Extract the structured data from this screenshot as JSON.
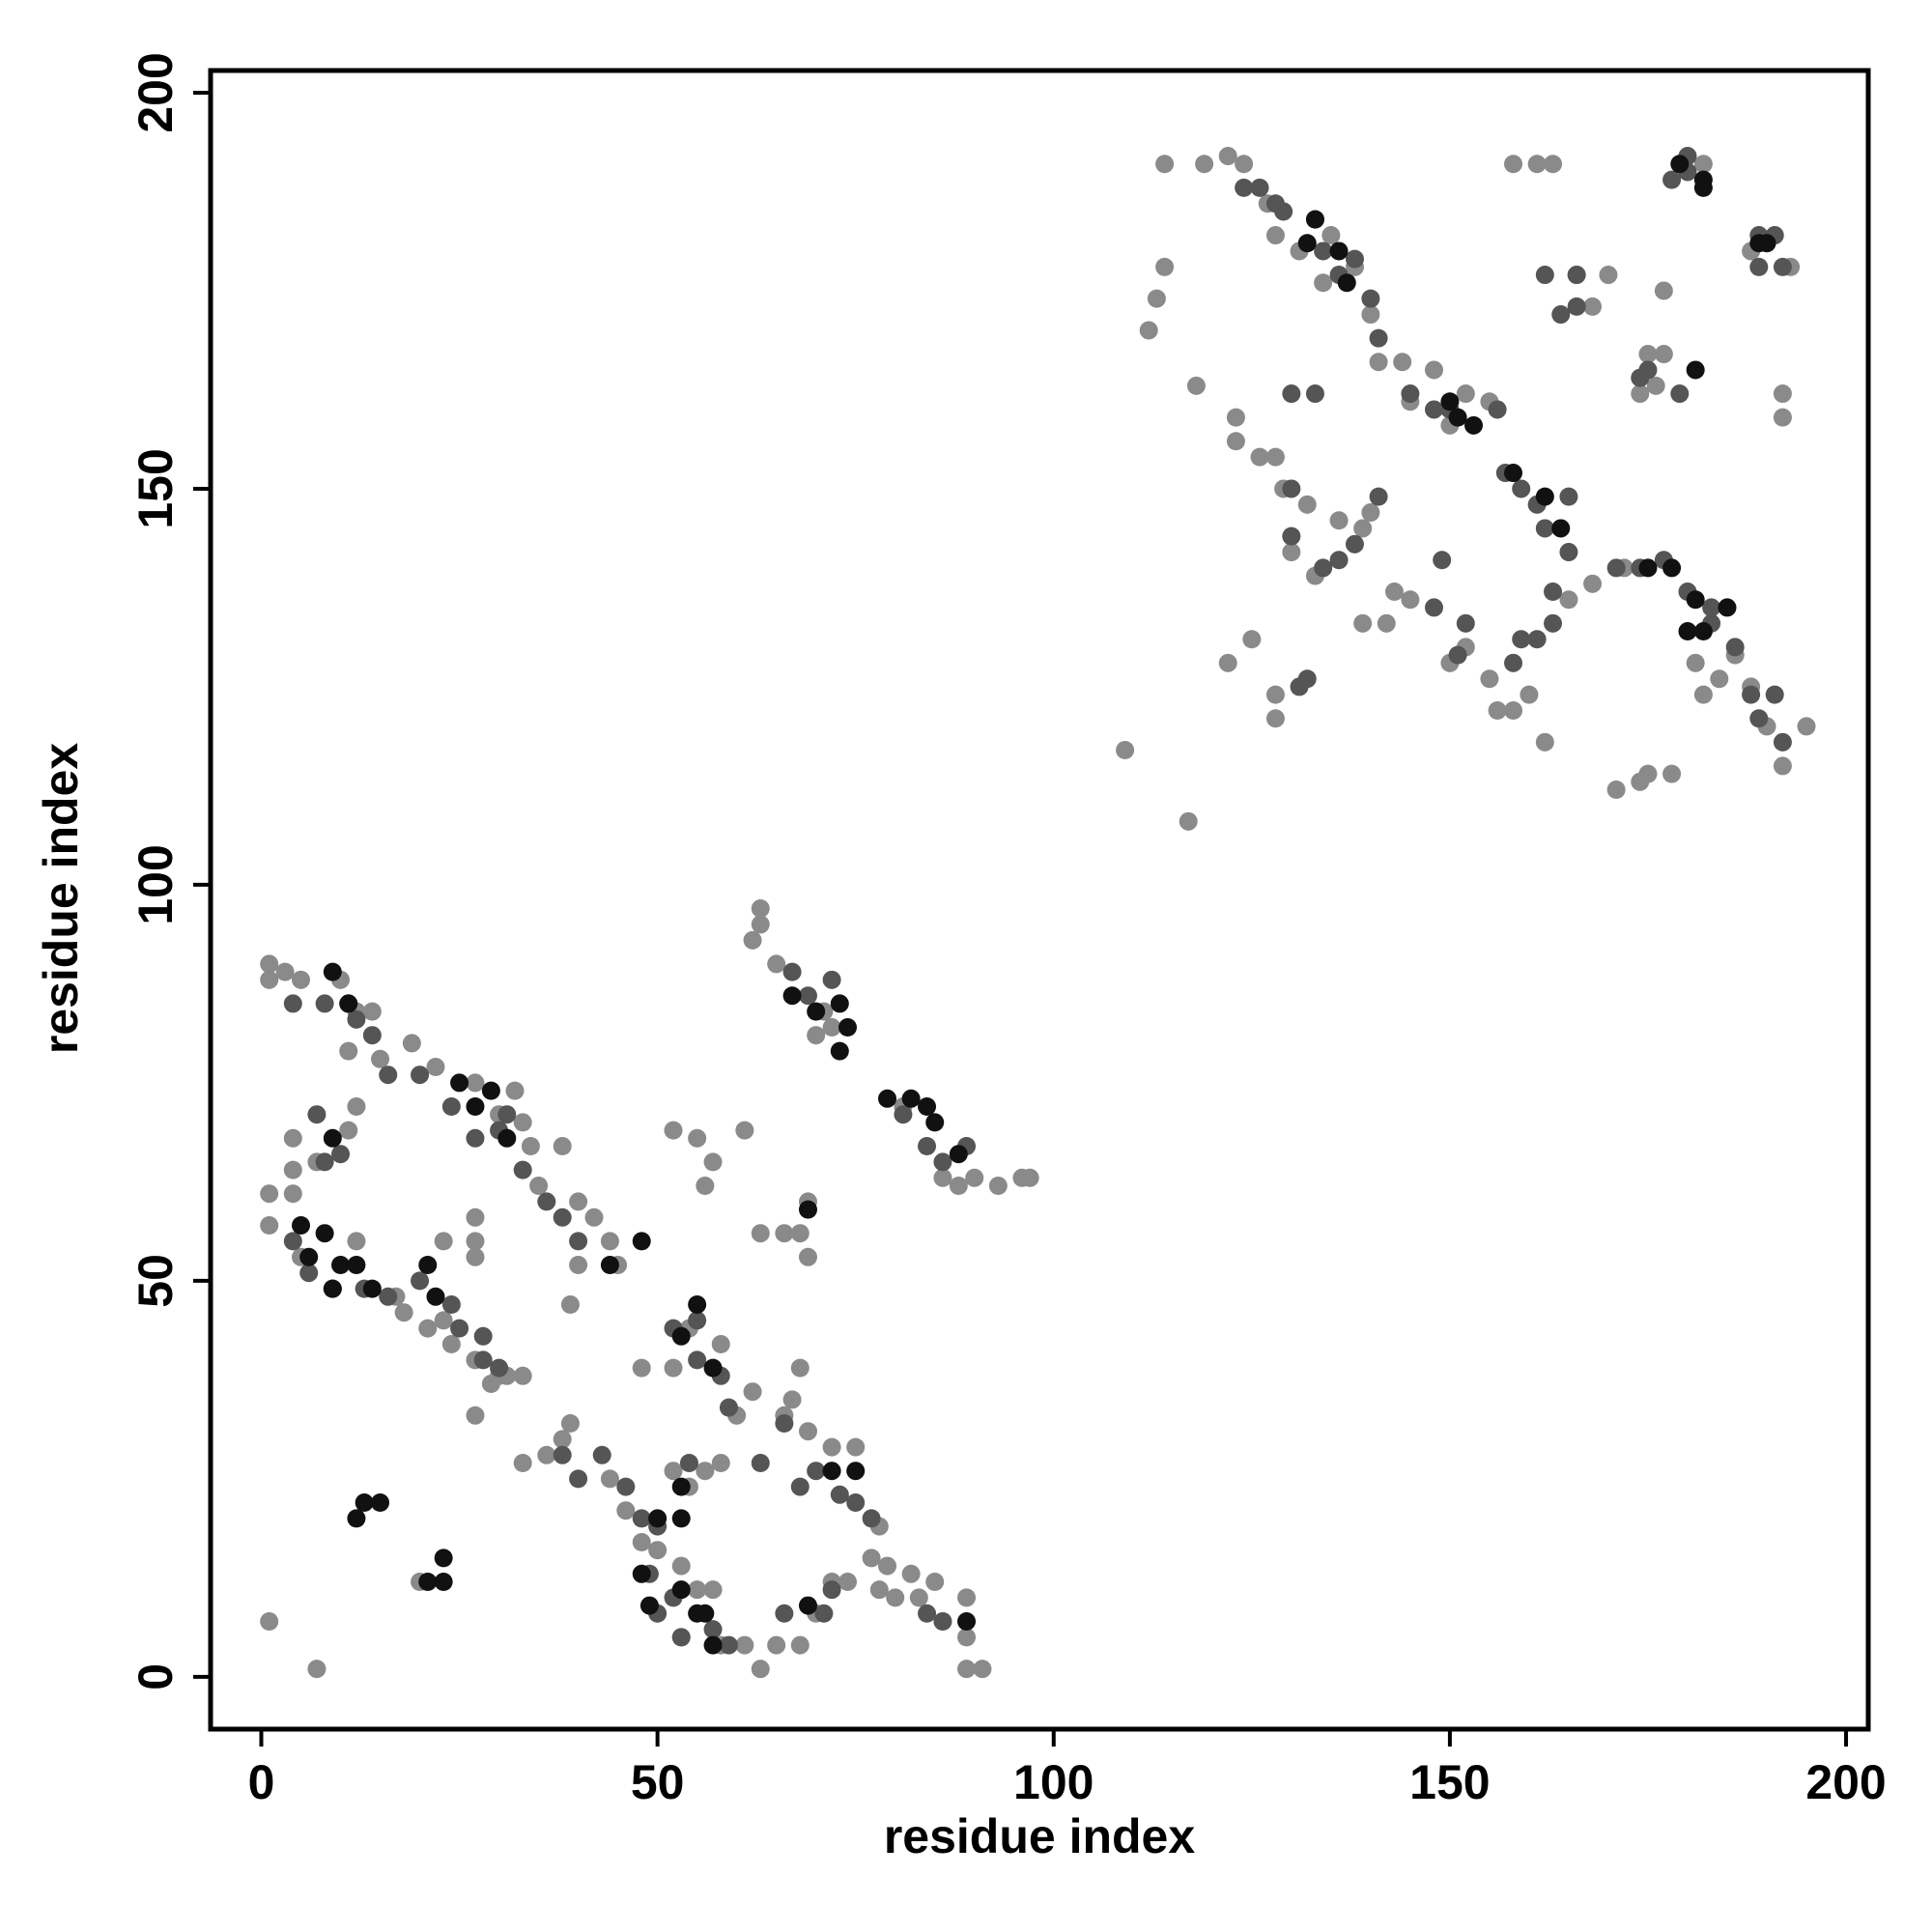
{
  "chart_data": {
    "type": "scatter",
    "x_label": "residue index",
    "y_label": "residue index",
    "xlim": [
      -6.4,
      202.8
    ],
    "ylim": [
      -6.6,
      202.8
    ],
    "xticks": [
      0,
      50,
      100,
      150,
      200
    ],
    "yticks": [
      0,
      50,
      100,
      150,
      200
    ],
    "series": [
      {
        "color": "#8a8a8a",
        "x": [
          1,
          1,
          3,
          5,
          10,
          12,
          14,
          11,
          15,
          19,
          22,
          27,
          32,
          33,
          30,
          34,
          38,
          35,
          40,
          42,
          44,
          40,
          39,
          45,
          12,
          11,
          7,
          4,
          4,
          4,
          1,
          1,
          5,
          9,
          12,
          17,
          18,
          21,
          24,
          27,
          29,
          31,
          33,
          27,
          30,
          33,
          36,
          38,
          39,
          44,
          46,
          48,
          50,
          53,
          57,
          53,
          58,
          61,
          63,
          65,
          68,
          70,
          72,
          74,
          78,
          80,
          83,
          86,
          89,
          89,
          91,
          1,
          7,
          20,
          27,
          27,
          27,
          23,
          23,
          48,
          52,
          54,
          58,
          60,
          62,
          66,
          69,
          72,
          75,
          78,
          77,
          79,
          82,
          85,
          89,
          55,
          56,
          54,
          52,
          58,
          55,
          52,
          57,
          56,
          61,
          63,
          66,
          68,
          69,
          69,
          68,
          67,
          62,
          63,
          63,
          65,
          70,
          72,
          71,
          81,
          86,
          93,
          96,
          97,
          88,
          90,
          114,
          119,
          122,
          124,
          127,
          128,
          131,
          134,
          135,
          138,
          140,
          141,
          144,
          145,
          148,
          150,
          155,
          113,
          112,
          114,
          118,
          123,
          123,
          126,
          128,
          129,
          132,
          130,
          136,
          139,
          140,
          133,
          139,
          143,
          145,
          150,
          152,
          155,
          156,
          158,
          160,
          162,
          152,
          158,
          161,
          163,
          166,
          168,
          170,
          174,
          175,
          177,
          176,
          177,
          182,
          188,
          192,
          192,
          193,
          195,
          192,
          190,
          188,
          186,
          184,
          182,
          181,
          172,
          168,
          171,
          174,
          175,
          178,
          109,
          117,
          122,
          125,
          128,
          128,
          142,
          165
        ],
        "y": [
          90,
          88,
          89,
          88,
          88,
          84,
          84,
          79,
          78,
          80,
          77,
          75,
          74,
          70,
          71,
          67,
          67,
          62,
          60,
          58,
          55,
          52,
          47,
          52,
          72,
          69,
          65,
          68,
          64,
          61,
          61,
          57,
          53,
          49,
          55,
          48,
          46,
          44,
          42,
          40,
          37,
          38,
          38,
          33,
          38,
          27,
          28,
          30,
          32,
          25,
          21,
          17,
          16,
          14,
          11,
          5,
          4,
          4,
          1,
          4,
          4,
          8,
          12,
          12,
          11,
          10,
          10,
          7,
          5,
          1,
          1,
          7,
          1,
          12,
          55,
          58,
          53,
          55,
          45,
          39,
          39,
          44,
          42,
          33,
          36,
          33,
          31,
          29,
          29,
          19,
          15,
          14,
          13,
          12,
          10,
          11,
          26,
          24,
          26,
          27,
          68,
          69,
          65,
          62,
          69,
          56,
          56,
          56,
          53,
          60,
          39,
          35,
          93,
          97,
          95,
          90,
          81,
          82,
          84,
          72,
          63,
          62,
          63,
          63,
          62,
          63,
          191,
          191,
          192,
          191,
          186,
          182,
          180,
          176,
          182,
          178,
          172,
          166,
          166,
          161,
          165,
          158,
          161,
          174,
          170,
          178,
          163,
          159,
          156,
          154,
          154,
          150,
          148,
          142,
          146,
          145,
          147,
          139,
          133,
          137,
          136,
          128,
          130,
          126,
          122,
          122,
          124,
          118,
          162,
          191,
          191,
          191,
          177,
          173,
          177,
          162,
          167,
          167,
          163,
          175,
          191,
          180,
          159,
          162,
          178,
          120,
          115,
          120,
          125,
          129,
          126,
          124,
          128,
          140,
          138,
          112,
          113,
          114,
          114,
          117,
          108,
          128,
          131,
          124,
          121,
          133,
          136
        ]
      },
      {
        "color": "#555555",
        "x": [
          4,
          8,
          11,
          12,
          14,
          16,
          20,
          24,
          27,
          30,
          31,
          33,
          36,
          38,
          40,
          4,
          6,
          9,
          13,
          16,
          20,
          24,
          25,
          28,
          28,
          30,
          38,
          40,
          43,
          46,
          48,
          50,
          49,
          50,
          52,
          53,
          57,
          59,
          66,
          71,
          72,
          68,
          70,
          73,
          75,
          77,
          66,
          63,
          59,
          58,
          55,
          55,
          52,
          54,
          84,
          86,
          8,
          7,
          10,
          69,
          67,
          72,
          81,
          84,
          86,
          89,
          126,
          129,
          133,
          134,
          136,
          138,
          140,
          141,
          145,
          148,
          150,
          156,
          124,
          128,
          133,
          130,
          130,
          136,
          134,
          141,
          148,
          152,
          151,
          149,
          158,
          159,
          161,
          163,
          163,
          165,
          165,
          162,
          159,
          161,
          166,
          164,
          166,
          171,
          174,
          177,
          180,
          183,
          186,
          188,
          189,
          191,
          192,
          175,
          174,
          179,
          178,
          180,
          180,
          189,
          191,
          192,
          189,
          162,
          157,
          183,
          131,
          132,
          130,
          138
        ],
        "y": [
          85,
          85,
          85,
          83,
          81,
          76,
          76,
          72,
          68,
          69,
          71,
          64,
          60,
          58,
          55,
          55,
          51,
          49,
          49,
          48,
          50,
          47,
          44,
          43,
          40,
          39,
          28,
          25,
          28,
          24,
          20,
          19,
          13,
          8,
          10,
          5,
          6,
          4,
          8,
          8,
          11,
          24,
          26,
          23,
          22,
          20,
          32,
          27,
          34,
          38,
          40,
          45,
          44,
          27,
          8,
          7,
          65,
          71,
          66,
          86,
          89,
          88,
          71,
          67,
          65,
          67,
          188,
          185,
          184,
          180,
          177,
          179,
          174,
          169,
          162,
          160,
          160,
          160,
          188,
          186,
          162,
          162,
          150,
          141,
          140,
          149,
          135,
          133,
          129,
          141,
          128,
          131,
          131,
          137,
          133,
          149,
          142,
          145,
          150,
          148,
          177,
          172,
          173,
          140,
          140,
          141,
          137,
          133,
          130,
          124,
          121,
          124,
          118,
          165,
          164,
          162,
          189,
          192,
          190,
          182,
          182,
          178,
          178,
          177,
          152,
          135,
          125,
          126,
          144,
          143
        ]
      },
      {
        "color": "#111111",
        "x": [
          5,
          8,
          6,
          10,
          12,
          9,
          14,
          21,
          22,
          25,
          27,
          29,
          31,
          9,
          9,
          11,
          13,
          15,
          12,
          23,
          23,
          21,
          48,
          44,
          55,
          57,
          53,
          49,
          48,
          50,
          53,
          53,
          53,
          55,
          57,
          69,
          72,
          75,
          69,
          67,
          70,
          73,
          74,
          73,
          79,
          82,
          84,
          85,
          88,
          89,
          56,
          132,
          136,
          137,
          150,
          151,
          153,
          158,
          162,
          164,
          175,
          178,
          181,
          180,
          182,
          185,
          179,
          182,
          182,
          189,
          190,
          181,
          133
        ],
        "y": [
          57,
          56,
          53,
          52,
          52,
          49,
          49,
          52,
          48,
          75,
          72,
          74,
          68,
          68,
          89,
          85,
          22,
          22,
          20,
          15,
          12,
          12,
          55,
          52,
          47,
          39,
          43,
          9,
          13,
          20,
          20,
          24,
          11,
          8,
          4,
          9,
          26,
          26,
          59,
          86,
          84,
          85,
          82,
          79,
          73,
          73,
          72,
          70,
          66,
          7,
          8,
          181,
          180,
          176,
          161,
          159,
          158,
          152,
          149,
          145,
          140,
          140,
          136,
          132,
          132,
          135,
          191,
          189,
          188,
          181,
          181,
          165,
          184
        ]
      }
    ]
  }
}
